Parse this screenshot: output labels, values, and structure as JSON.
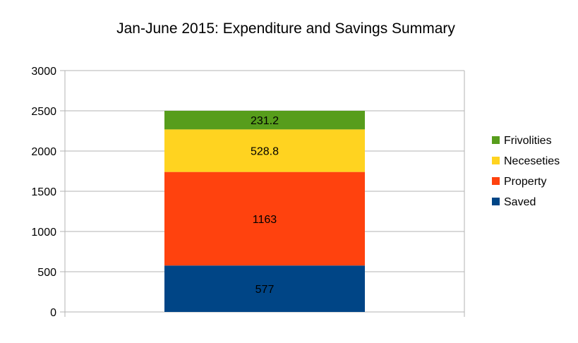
{
  "chart_data": {
    "type": "bar",
    "stacked": true,
    "title": "Jan-June 2015: Expenditure and Savings Summary",
    "xlabel": "",
    "ylabel": "",
    "categories": [
      ""
    ],
    "ylim": [
      0,
      3000
    ],
    "yticks": [
      0,
      500,
      1000,
      1500,
      2000,
      2500,
      3000
    ],
    "grid": true,
    "legend_position": "right",
    "series": [
      {
        "name": "Saved",
        "values": [
          577
        ],
        "color": "#004586"
      },
      {
        "name": "Property",
        "values": [
          1163
        ],
        "color": "#ff420e"
      },
      {
        "name": "Neceseties",
        "values": [
          528.8
        ],
        "color": "#ffd320"
      },
      {
        "name": "Frivolities",
        "values": [
          231.2
        ],
        "color": "#579d1c"
      }
    ],
    "data_labels": [
      "577",
      "1163",
      "528.8",
      "231.2"
    ]
  }
}
